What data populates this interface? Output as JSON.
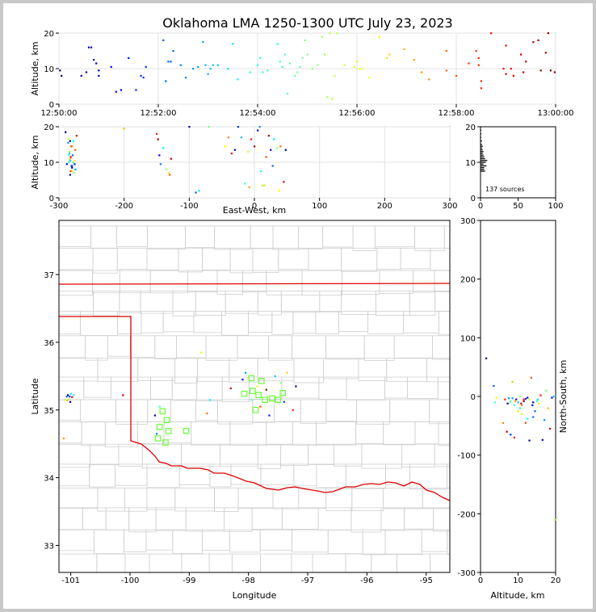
{
  "title": "Oklahoma LMA 1250-1300 UTC July 23, 2023",
  "source_count_label": "137 sources",
  "chart_data": [
    {
      "type": "scatter",
      "panel": "altitude-vs-time",
      "ylabel": "Altitude, km",
      "xlabel": "",
      "x_ticklabels": [
        "12:50:00",
        "12:52:00",
        "12:54:00",
        "12:56:00",
        "12:58:00",
        "13:00:00"
      ],
      "x_ticks_min": [
        0,
        2,
        4,
        6,
        8,
        10
      ],
      "xlim": [
        0,
        10
      ],
      "ylim": [
        0,
        20
      ],
      "y_ticks": [
        0,
        10,
        20
      ],
      "grid": true,
      "points_xy": [
        [
          0.02,
          9.5
        ],
        [
          0.05,
          8
        ],
        [
          0.45,
          8
        ],
        [
          0.55,
          9
        ],
        [
          0.6,
          16
        ],
        [
          0.65,
          16
        ],
        [
          0.7,
          12.5
        ],
        [
          0.75,
          11.5
        ],
        [
          0.8,
          8
        ],
        [
          0.8,
          9.5
        ],
        [
          1.05,
          10.5
        ],
        [
          1.15,
          3.5
        ],
        [
          1.25,
          4
        ],
        [
          1.4,
          13
        ],
        [
          1.55,
          4
        ],
        [
          1.65,
          8
        ],
        [
          1.7,
          7.5
        ],
        [
          1.75,
          10.5
        ],
        [
          2.1,
          18
        ],
        [
          2.15,
          6.5
        ],
        [
          2.2,
          12
        ],
        [
          2.25,
          12
        ],
        [
          2.3,
          15
        ],
        [
          2.45,
          11
        ],
        [
          2.55,
          7.5
        ],
        [
          2.7,
          10
        ],
        [
          2.8,
          10.5
        ],
        [
          2.9,
          17.5
        ],
        [
          2.95,
          11
        ],
        [
          3.0,
          8.5
        ],
        [
          3.05,
          10
        ],
        [
          3.1,
          11
        ],
        [
          3.2,
          11
        ],
        [
          3.4,
          10
        ],
        [
          3.5,
          17
        ],
        [
          3.6,
          7
        ],
        [
          3.85,
          9
        ],
        [
          4.0,
          11
        ],
        [
          4.05,
          13
        ],
        [
          4.1,
          9
        ],
        [
          4.2,
          9.5
        ],
        [
          4.4,
          17
        ],
        [
          4.45,
          12
        ],
        [
          4.5,
          10.5
        ],
        [
          4.55,
          14
        ],
        [
          4.6,
          3
        ],
        [
          4.65,
          11.5
        ],
        [
          4.75,
          8
        ],
        [
          4.8,
          9
        ],
        [
          4.85,
          10.5
        ],
        [
          4.9,
          13
        ],
        [
          4.95,
          18
        ],
        [
          5.0,
          14
        ],
        [
          5.1,
          10
        ],
        [
          5.2,
          11
        ],
        [
          5.3,
          19
        ],
        [
          5.35,
          14
        ],
        [
          5.4,
          2
        ],
        [
          5.45,
          20
        ],
        [
          5.5,
          1.5
        ],
        [
          5.55,
          8
        ],
        [
          5.6,
          20
        ],
        [
          5.75,
          11
        ],
        [
          5.95,
          10.5
        ],
        [
          6.0,
          12
        ],
        [
          6.05,
          10
        ],
        [
          6.1,
          10
        ],
        [
          6.25,
          7.5
        ],
        [
          6.45,
          19
        ],
        [
          6.6,
          13
        ],
        [
          6.65,
          14
        ],
        [
          6.95,
          15.5
        ],
        [
          7.15,
          12.5
        ],
        [
          7.3,
          9
        ],
        [
          7.45,
          7
        ],
        [
          7.8,
          15
        ],
        [
          7.8,
          9.5
        ],
        [
          8.0,
          8
        ],
        [
          8.25,
          11.5
        ],
        [
          8.4,
          15
        ],
        [
          8.45,
          13
        ],
        [
          8.45,
          11
        ],
        [
          8.5,
          4.5
        ],
        [
          8.5,
          6.5
        ],
        [
          8.7,
          20
        ],
        [
          8.95,
          10
        ],
        [
          9.0,
          8.5
        ],
        [
          9.0,
          16.5
        ],
        [
          9.1,
          10
        ],
        [
          9.15,
          8
        ],
        [
          9.3,
          14
        ],
        [
          9.35,
          9
        ],
        [
          9.4,
          12
        ],
        [
          9.55,
          17.5
        ],
        [
          9.65,
          18
        ],
        [
          9.7,
          9.5
        ],
        [
          9.8,
          14.5
        ],
        [
          9.85,
          20
        ],
        [
          9.9,
          9.5
        ],
        [
          9.98,
          9
        ]
      ]
    },
    {
      "type": "scatter",
      "panel": "altitude-vs-east-west",
      "xlabel": "East-West, km",
      "ylabel": "Altitude, km",
      "xlim": [
        -300,
        300
      ],
      "ylim": [
        0,
        20
      ],
      "x_ticks": [
        -300,
        -200,
        -100,
        0,
        100,
        200,
        300
      ],
      "y_ticks": [
        0,
        10,
        20
      ],
      "grid": true,
      "points_xy": [
        [
          -290,
          18.5
        ],
        [
          -288,
          9.5
        ],
        [
          -286,
          15.5
        ],
        [
          -285,
          10
        ],
        [
          -284,
          13
        ],
        [
          -283,
          11
        ],
        [
          -282,
          7.5
        ],
        [
          -281,
          14.5
        ],
        [
          -280,
          8.5
        ],
        [
          -279,
          12
        ],
        [
          -278,
          16
        ],
        [
          -277,
          7
        ],
        [
          -276,
          10.5
        ],
        [
          -275,
          13.5
        ],
        [
          -273,
          17.5
        ],
        [
          -283,
          16
        ],
        [
          -281,
          9
        ],
        [
          -284,
          12.5
        ],
        [
          -278,
          10
        ],
        [
          -279,
          7.5
        ],
        [
          -280,
          14.5
        ],
        [
          -282,
          11.5
        ],
        [
          -283,
          6.5
        ],
        [
          -276,
          9.5
        ],
        [
          -275,
          8
        ],
        [
          -285,
          12
        ],
        [
          -285,
          16.5
        ],
        [
          -200,
          19.5
        ],
        [
          -150,
          18
        ],
        [
          -148,
          16.5
        ],
        [
          -146,
          12
        ],
        [
          -144,
          9.5
        ],
        [
          -140,
          14
        ],
        [
          -135,
          8
        ],
        [
          -132,
          7
        ],
        [
          -130,
          6.5
        ],
        [
          -128,
          11
        ],
        [
          -100,
          20
        ],
        [
          -90,
          1.5
        ],
        [
          -85,
          2
        ],
        [
          -70,
          20
        ],
        [
          -45,
          14.5
        ],
        [
          -40,
          17
        ],
        [
          -35,
          12.5
        ],
        [
          -30,
          13.5
        ],
        [
          -25,
          20
        ],
        [
          -20,
          17
        ],
        [
          -15,
          4
        ],
        [
          -10,
          13
        ],
        [
          -8,
          3
        ],
        [
          -5,
          16.5
        ],
        [
          0,
          14.5
        ],
        [
          5,
          19
        ],
        [
          8,
          20
        ],
        [
          10,
          7.5
        ],
        [
          12,
          3.5
        ],
        [
          15,
          3.5
        ],
        [
          18,
          11.5
        ],
        [
          22,
          17.5
        ],
        [
          25,
          13.5
        ],
        [
          28,
          9
        ],
        [
          30,
          16.5
        ],
        [
          35,
          14
        ],
        [
          38,
          2
        ],
        [
          40,
          14.5
        ],
        [
          45,
          4.5
        ],
        [
          48,
          13.5
        ],
        [
          -280,
          9
        ],
        [
          -283,
          10.5
        ]
      ]
    },
    {
      "type": "histogram",
      "panel": "altitude-histogram",
      "xlim": [
        0,
        100
      ],
      "ylim": [
        0,
        20
      ],
      "x_ticks": [
        0,
        50,
        100
      ],
      "y_ticks": [
        0,
        10,
        20
      ],
      "bins_alt_km": [
        7.5,
        8,
        8.5,
        9,
        9.5,
        10,
        10.5,
        11,
        11.5,
        12,
        12.5,
        13,
        13.5,
        14,
        14.5,
        15,
        16,
        17,
        18,
        19,
        20
      ],
      "counts": [
        6,
        5,
        5,
        8,
        4,
        7,
        9,
        6,
        5,
        4,
        3,
        4,
        3,
        2,
        3,
        2,
        2,
        1,
        1,
        1,
        1
      ]
    },
    {
      "type": "map",
      "panel": "plan-view",
      "xlabel": "Longitude",
      "ylabel": "Latitude",
      "xlim": [
        -101.2,
        -94.6
      ],
      "ylim": [
        32.6,
        37.8
      ],
      "x_ticks": [
        -101,
        -100,
        -99,
        -98,
        -97,
        -96,
        -95
      ],
      "y_ticks": [
        33,
        34,
        35,
        36,
        37
      ],
      "stations_lonlat": [
        [
          -97.95,
          35.47
        ],
        [
          -97.78,
          35.43
        ],
        [
          -97.93,
          35.28
        ],
        [
          -97.83,
          35.22
        ],
        [
          -97.6,
          35.17
        ],
        [
          -97.5,
          35.15
        ],
        [
          -97.42,
          35.25
        ],
        [
          -97.72,
          35.15
        ],
        [
          -97.88,
          35.0
        ],
        [
          -99.45,
          34.98
        ],
        [
          -99.38,
          34.85
        ],
        [
          -99.5,
          34.75
        ],
        [
          -99.35,
          34.69
        ],
        [
          -99.05,
          34.69
        ],
        [
          -99.4,
          34.52
        ],
        [
          -99.53,
          34.58
        ],
        [
          -98.07,
          35.24
        ]
      ],
      "points_lonlat": [
        [
          -101.05,
          35.22
        ],
        [
          -101.02,
          35.2
        ],
        [
          -101.0,
          35.24
        ],
        [
          -101.03,
          35.16
        ],
        [
          -101.06,
          35.14
        ],
        [
          -100.98,
          35.19
        ],
        [
          -101.01,
          35.12
        ],
        [
          -101.07,
          35.2
        ],
        [
          -100.95,
          35.22
        ],
        [
          -101.1,
          35.15
        ],
        [
          -101.12,
          34.58
        ],
        [
          -100.12,
          35.22
        ],
        [
          -99.58,
          34.92
        ],
        [
          -99.55,
          34.65
        ],
        [
          -99.5,
          35.05
        ],
        [
          -98.8,
          35.85
        ],
        [
          -98.7,
          34.95
        ],
        [
          -98.3,
          35.32
        ],
        [
          -98.1,
          35.45
        ],
        [
          -98.05,
          35.55
        ],
        [
          -97.95,
          35.15
        ],
        [
          -97.85,
          35.35
        ],
        [
          -97.8,
          35.05
        ],
        [
          -97.7,
          35.3
        ],
        [
          -97.65,
          34.92
        ],
        [
          -97.55,
          35.5
        ],
        [
          -97.45,
          35.4
        ],
        [
          -97.35,
          35.55
        ],
        [
          -97.25,
          35.0
        ],
        [
          -97.2,
          35.35
        ],
        [
          -97.4,
          35.12
        ],
        [
          -98.65,
          35.15
        ]
      ]
    },
    {
      "type": "scatter",
      "panel": "north-south-vs-altitude",
      "xlabel": "Altitude, km",
      "ylabel": "North-South, km",
      "xlim": [
        0,
        20
      ],
      "ylim": [
        -300,
        300
      ],
      "x_ticks": [
        0,
        10,
        20
      ],
      "y_ticks": [
        -300,
        -200,
        -100,
        0,
        100,
        200,
        300
      ],
      "points_xy": [
        [
          1.5,
          65
        ],
        [
          3.5,
          18
        ],
        [
          3.8,
          -10
        ],
        [
          4.2,
          -2
        ],
        [
          6.5,
          -5
        ],
        [
          7.2,
          -12
        ],
        [
          7.5,
          -3
        ],
        [
          8,
          -8
        ],
        [
          8.5,
          25
        ],
        [
          9,
          -70
        ],
        [
          9.5,
          -5
        ],
        [
          10,
          -10
        ],
        [
          10.5,
          0
        ],
        [
          11,
          -15
        ],
        [
          11.5,
          -8
        ],
        [
          12,
          -4
        ],
        [
          12.5,
          -38
        ],
        [
          13,
          -5
        ],
        [
          13.5,
          32
        ],
        [
          14,
          -10
        ],
        [
          14.5,
          -25
        ],
        [
          15,
          -8
        ],
        [
          15.5,
          -12
        ],
        [
          16,
          2
        ],
        [
          16.5,
          -74
        ],
        [
          17,
          -40
        ],
        [
          17.5,
          10
        ],
        [
          18,
          -20
        ],
        [
          18.5,
          -55
        ],
        [
          19,
          -2
        ],
        [
          19.5,
          0
        ],
        [
          19.8,
          -210
        ],
        [
          6,
          -45
        ],
        [
          7,
          -60
        ],
        [
          8,
          -65
        ],
        [
          10.5,
          -20
        ],
        [
          11,
          -30
        ],
        [
          12,
          -45
        ],
        [
          13,
          -75
        ],
        [
          14,
          -35
        ],
        [
          9,
          -15
        ],
        [
          10,
          -25
        ],
        [
          11.5,
          -5
        ],
        [
          12.5,
          -2
        ],
        [
          8.5,
          -3
        ],
        [
          7.8,
          -10
        ],
        [
          9.2,
          -8
        ],
        [
          10.8,
          -12
        ],
        [
          13.8,
          -15
        ],
        [
          15.2,
          -5
        ]
      ]
    }
  ]
}
